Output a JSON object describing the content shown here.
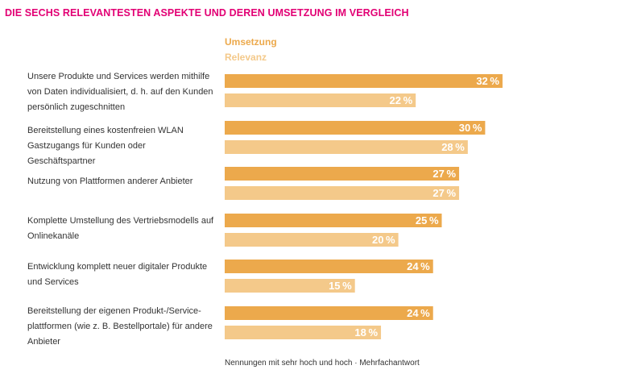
{
  "chart_data": {
    "type": "bar",
    "orientation": "horizontal",
    "title": "DIE SECHS RELEVANTESTEN ASPEKTE UND DEREN UMSETZUNG IM VERGLEICH",
    "categories": [
      "Unsere Produkte und Services werden mithilfe von Daten individualisiert, d. h. auf den Kunden persönlich zugeschnitten",
      "Bereitstellung eines kostenfreien WLAN Gastzugangs für Kunden oder Geschäftspartner",
      "Nutzung von Plattformen anderer Anbieter",
      "Komplette Umstellung des Vertriebsmodells auf Onlinekanäle",
      "Entwicklung komplett neuer digitaler Produkte und Services",
      "Bereitstellung der eigenen Produkt-/Service-plattformen (wie z. B. Bestellportale) für andere Anbieter"
    ],
    "series": [
      {
        "name": "Umsetzung",
        "color": "#eca94c",
        "values": [
          32,
          30,
          27,
          25,
          24,
          24
        ]
      },
      {
        "name": "Relevanz",
        "color": "#f4c98a",
        "values": [
          22,
          28,
          27,
          20,
          15,
          18
        ]
      }
    ],
    "value_suffix": "%",
    "xlim": [
      0,
      40
    ],
    "xlabel": "",
    "ylabel": "",
    "grid": false,
    "legend": "top",
    "footnote": "Nennungen mit sehr hoch und hoch · Mehrfachantwort"
  }
}
